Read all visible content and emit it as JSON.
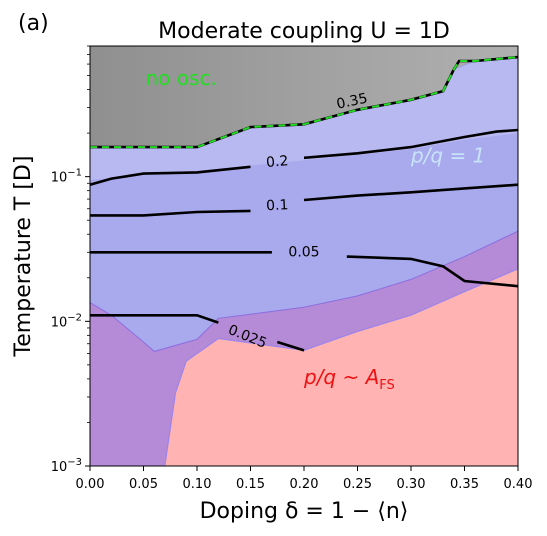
{
  "chart_data": {
    "type": "contour",
    "panel_label": "(a)",
    "title": "Moderate coupling U = 1D",
    "xlabel": "Doping δ = 1 − ⟨n⟩",
    "ylabel": "Temperature T  [D]",
    "xlim": [
      0.0,
      0.4
    ],
    "ylim": [
      0.001,
      0.8
    ],
    "yscale": "log",
    "x_ticks": [
      "0.00",
      "0.05",
      "0.10",
      "0.15",
      "0.20",
      "0.25",
      "0.30",
      "0.35",
      "0.40"
    ],
    "y_ticks": [
      {
        "value": 0.001,
        "base": "10",
        "exp": "−3"
      },
      {
        "value": 0.01,
        "base": "10",
        "exp": "−2"
      },
      {
        "value": 0.1,
        "base": "10",
        "exp": "−1"
      }
    ],
    "regions": [
      {
        "label": "no osc.",
        "color": "#22dd22",
        "label_at": {
          "x": 0.052,
          "y": 0.43
        },
        "boundary": [
          [
            0.0,
            0.16
          ],
          [
            0.1,
            0.16
          ],
          [
            0.15,
            0.22
          ],
          [
            0.2,
            0.23
          ],
          [
            0.25,
            0.29
          ],
          [
            0.3,
            0.34
          ],
          [
            0.33,
            0.39
          ],
          [
            0.34,
            0.55
          ],
          [
            0.36,
            0.63
          ],
          [
            0.4,
            0.67
          ]
        ]
      },
      {
        "label_prefix": "p/q = 1",
        "color": "#c8e4f8",
        "label_at": {
          "x": 0.3,
          "y": 0.125
        },
        "boundary": [
          [
            0.0,
            0.16
          ],
          [
            0.1,
            0.16
          ],
          [
            0.15,
            0.22
          ],
          [
            0.2,
            0.23
          ],
          [
            0.25,
            0.29
          ],
          [
            0.3,
            0.34
          ],
          [
            0.33,
            0.39
          ],
          [
            0.34,
            0.55
          ],
          [
            0.36,
            0.63
          ],
          [
            0.4,
            0.67
          ]
        ]
      },
      {
        "label_prefix": "p/q ~ A",
        "label_sub": "FS",
        "color": "#ee1111",
        "label_at": {
          "x": 0.2,
          "y": 0.0037
        },
        "boundary": [
          [
            0.07,
            0.001
          ],
          [
            0.08,
            0.0032
          ],
          [
            0.09,
            0.0053
          ],
          [
            0.12,
            0.0076
          ],
          [
            0.2,
            0.0063
          ],
          [
            0.25,
            0.0085
          ],
          [
            0.3,
            0.011
          ],
          [
            0.35,
            0.016
          ],
          [
            0.4,
            0.023
          ]
        ]
      }
    ],
    "contours": [
      {
        "level": "0.35",
        "points": [
          [
            0.0,
            0.16
          ],
          [
            0.1,
            0.16
          ],
          [
            0.15,
            0.22
          ],
          [
            0.2,
            0.23
          ],
          [
            0.25,
            0.29
          ],
          [
            0.3,
            0.34
          ],
          [
            0.33,
            0.39
          ],
          [
            0.34,
            0.55
          ],
          [
            0.345,
            0.63
          ],
          [
            0.36,
            0.63
          ],
          [
            0.4,
            0.67
          ]
        ],
        "label_at": {
          "x": 0.245,
          "y": 0.33
        }
      },
      {
        "level": "0.2",
        "points": [
          [
            0.2,
            0.135
          ],
          [
            0.25,
            0.145
          ],
          [
            0.3,
            0.16
          ],
          [
            0.35,
            0.188
          ],
          [
            0.38,
            0.205
          ],
          [
            0.4,
            0.21
          ]
        ],
        "pre_points": [
          [
            0.0,
            0.088
          ],
          [
            0.02,
            0.097
          ],
          [
            0.05,
            0.105
          ],
          [
            0.1,
            0.107
          ],
          [
            0.15,
            0.117
          ]
        ],
        "label_at": {
          "x": 0.175,
          "y": 0.126
        }
      },
      {
        "level": "0.1",
        "points": [
          [
            0.0,
            0.054
          ],
          [
            0.05,
            0.054
          ],
          [
            0.1,
            0.057
          ],
          [
            0.15,
            0.058
          ]
        ],
        "post_points": [
          [
            0.2,
            0.069
          ],
          [
            0.25,
            0.074
          ],
          [
            0.3,
            0.078
          ],
          [
            0.35,
            0.083
          ],
          [
            0.4,
            0.088
          ]
        ],
        "label_at": {
          "x": 0.175,
          "y": 0.063
        }
      },
      {
        "level": "0.05",
        "points": [
          [
            0.0,
            0.03
          ],
          [
            0.05,
            0.03
          ],
          [
            0.1,
            0.03
          ],
          [
            0.15,
            0.03
          ],
          [
            0.17,
            0.03
          ]
        ],
        "post_points": [
          [
            0.24,
            0.028
          ],
          [
            0.3,
            0.027
          ],
          [
            0.33,
            0.024
          ],
          [
            0.35,
            0.019
          ],
          [
            0.4,
            0.0175
          ]
        ],
        "label_at": {
          "x": 0.2,
          "y": 0.03
        }
      },
      {
        "level": "0.025",
        "points": [
          [
            0.0,
            0.011
          ],
          [
            0.05,
            0.011
          ],
          [
            0.1,
            0.011
          ],
          [
            0.12,
            0.0098
          ]
        ],
        "post_points": [
          [
            0.175,
            0.0072
          ],
          [
            0.2,
            0.0063
          ]
        ],
        "label_at": {
          "x": 0.147,
          "y": 0.0078
        }
      }
    ],
    "grid": false,
    "legend": "none"
  },
  "region_labels": {
    "no_osc": "no osc.",
    "pq1_prefix": "p/q = 1",
    "pqA_prefix": "p/q ~ A",
    "pqA_sub": "FS"
  }
}
